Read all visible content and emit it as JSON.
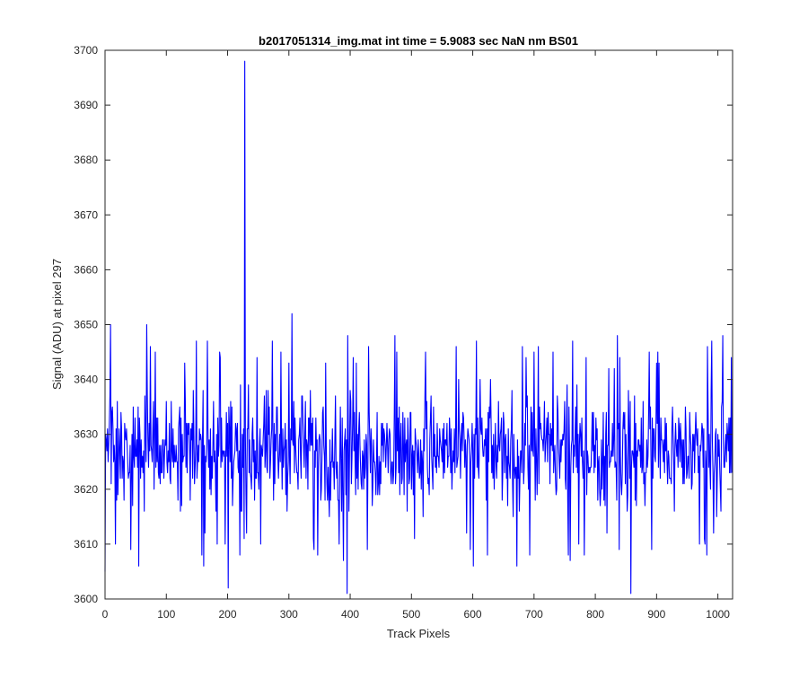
{
  "colors": {
    "background": "#ffffff",
    "series": "#0000ff",
    "axes": "#262626"
  },
  "chart_data": {
    "type": "line",
    "title": "b2017051314_img.mat int time = 5.9083 sec  NaN nm BS01",
    "xlabel": "Track Pixels",
    "ylabel": "Signal (ADU) at pixel 297",
    "xlim": [
      0,
      1024
    ],
    "ylim": [
      3600,
      3700
    ],
    "xticks": [
      0,
      100,
      200,
      300,
      400,
      500,
      600,
      700,
      800,
      900,
      1000
    ],
    "yticks": [
      3600,
      3610,
      3620,
      3630,
      3640,
      3650,
      3660,
      3670,
      3680,
      3690,
      3700
    ],
    "grid": false,
    "legend": "none",
    "series": [
      {
        "color": "#0000ff",
        "n_points": 1024,
        "sample_peaks": [
          {
            "x": 0,
            "y": 3605
          },
          {
            "x": 9,
            "y": 3650
          },
          {
            "x": 17,
            "y": 3610
          },
          {
            "x": 68,
            "y": 3650
          },
          {
            "x": 201,
            "y": 3602
          },
          {
            "x": 228,
            "y": 3698
          },
          {
            "x": 305,
            "y": 3652
          },
          {
            "x": 395,
            "y": 3601
          },
          {
            "x": 858,
            "y": 3601
          }
        ],
        "typical_range": [
          3612,
          3642
        ],
        "mean": 3626
      }
    ]
  }
}
